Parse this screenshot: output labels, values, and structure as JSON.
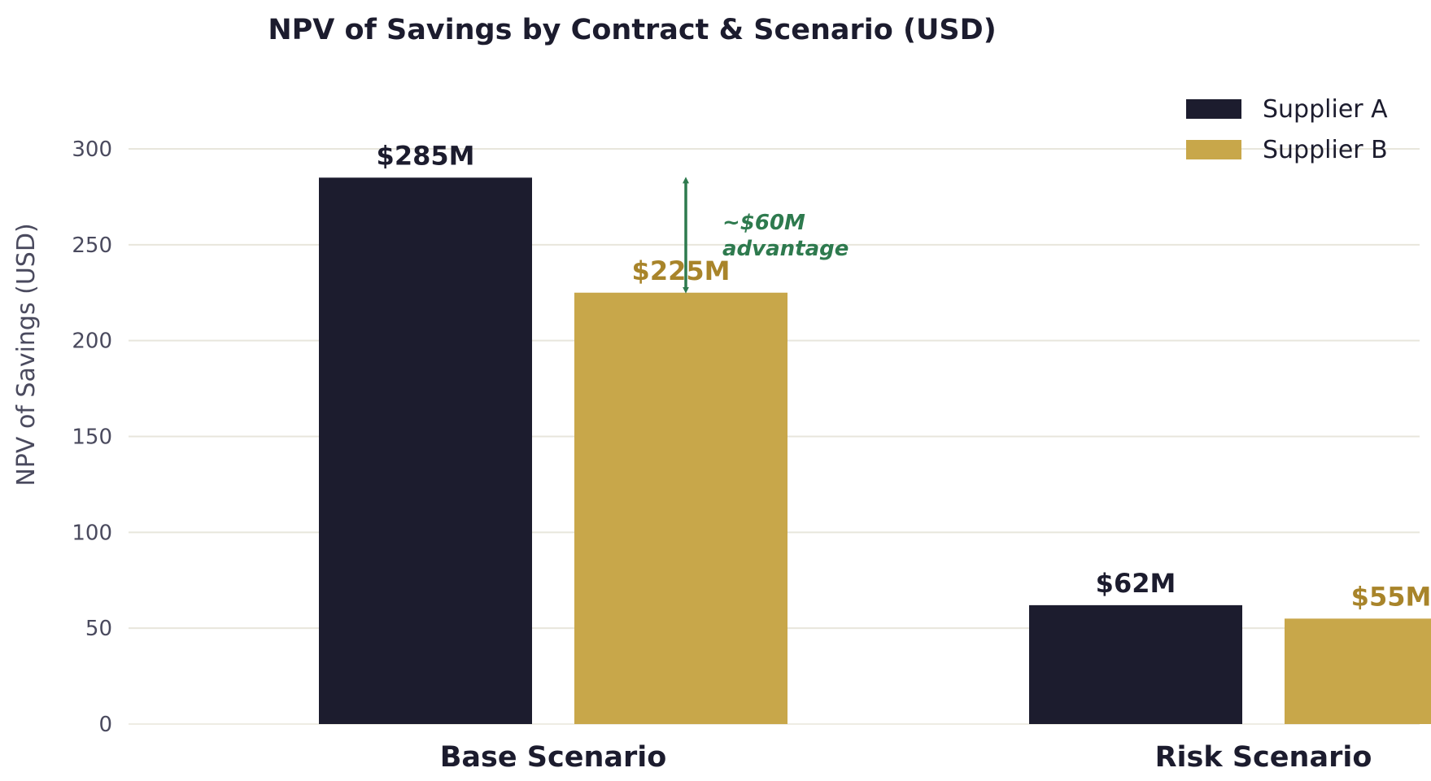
{
  "chart_data": {
    "type": "bar",
    "title": "NPV of Savings by Contract & Scenario (USD)",
    "xlabel": "",
    "ylabel": "NPV of Savings (USD)",
    "ylim": [
      0,
      300
    ],
    "yticks": [
      0,
      50,
      100,
      150,
      200,
      250,
      300
    ],
    "grid": true,
    "legend_position": "top-right",
    "categories": [
      "Base Scenario",
      "Risk Scenario"
    ],
    "series": [
      {
        "name": "Supplier A",
        "color": "#1c1c2e",
        "label_color": "#1c1c2e",
        "values": [
          285,
          62
        ],
        "labels": [
          "$285M",
          "$62M"
        ]
      },
      {
        "name": "Supplier B",
        "color": "#c8a74a",
        "label_color": "#a8842a",
        "values": [
          225,
          55
        ],
        "labels": [
          "$225M",
          "$55M"
        ]
      }
    ],
    "annotation": {
      "line1": "~$60M",
      "line2": "advantage",
      "from": 285,
      "to": 225,
      "color": "#2e7a4e"
    },
    "gridline_color": "#e8e6dc"
  }
}
